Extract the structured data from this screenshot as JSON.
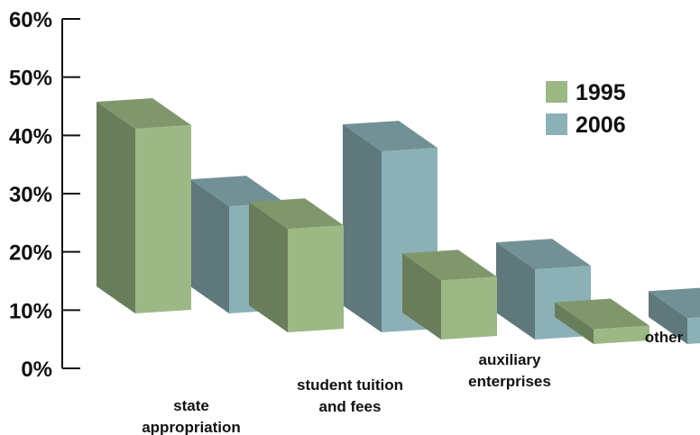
{
  "chart_data": {
    "type": "bar",
    "style": "3d-perspective",
    "categories": [
      [
        "state",
        "appropriation"
      ],
      [
        "student tuition",
        "and fees"
      ],
      [
        "auxiliary",
        "enterprises"
      ],
      [
        "other"
      ]
    ],
    "series": [
      {
        "name": "1995",
        "values": [
          50,
          28,
          16,
          4
        ],
        "color": "#9cb884"
      },
      {
        "name": "2006",
        "values": [
          29,
          49,
          19,
          7
        ],
        "color": "#8bb1b7"
      }
    ],
    "ylim": [
      0,
      60
    ],
    "yticks": [
      "0%",
      "10%",
      "20%",
      "30%",
      "40%",
      "50%",
      "60%"
    ],
    "grid": false,
    "legend_position": "top-right"
  }
}
